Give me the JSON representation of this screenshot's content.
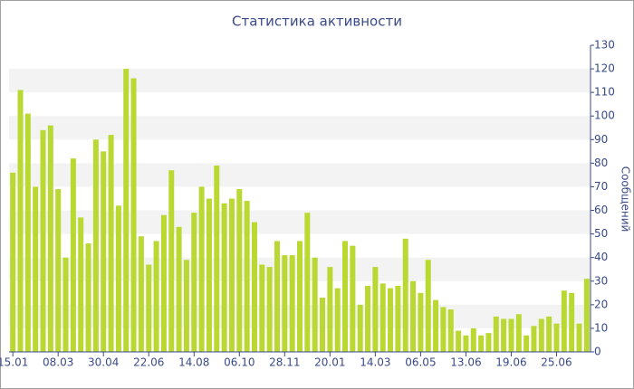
{
  "chart_data": {
    "type": "bar",
    "title": "Статистика активности",
    "y_label": "Сообщений",
    "categories": [
      "15.01",
      null,
      null,
      null,
      null,
      null,
      "08.03",
      null,
      null,
      null,
      null,
      null,
      "30.04",
      null,
      null,
      null,
      null,
      null,
      "22.06",
      null,
      null,
      null,
      null,
      null,
      "14.08",
      null,
      null,
      null,
      null,
      null,
      "06.10",
      null,
      null,
      null,
      null,
      null,
      "28.11",
      null,
      null,
      null,
      null,
      null,
      "20.01",
      null,
      null,
      null,
      null,
      null,
      "14.03",
      null,
      null,
      null,
      null,
      null,
      "06.05",
      null,
      null,
      null,
      null,
      null,
      "13.06",
      null,
      null,
      null,
      null,
      null,
      "19.06",
      null,
      null,
      null,
      null,
      null,
      "25.06",
      null,
      null,
      null,
      null
    ],
    "values": [
      76,
      111,
      101,
      70,
      94,
      96,
      69,
      40,
      82,
      57,
      46,
      90,
      85,
      92,
      62,
      120,
      116,
      49,
      37,
      47,
      58,
      77,
      53,
      39,
      59,
      70,
      65,
      79,
      63,
      65,
      69,
      64,
      55,
      37,
      36,
      47,
      41,
      41,
      47,
      59,
      40,
      23,
      36,
      27,
      47,
      45,
      20,
      28,
      36,
      29,
      27,
      28,
      48,
      30,
      25,
      39,
      22,
      19,
      18,
      9,
      7,
      10,
      7,
      8,
      15,
      14,
      14,
      16,
      7,
      11,
      14,
      15,
      12,
      26,
      25,
      12,
      31
    ],
    "color": "#b9d832",
    "ylim": [
      0,
      130
    ],
    "yticks": [
      0,
      10,
      20,
      30,
      40,
      50,
      60,
      70,
      80,
      90,
      100,
      110,
      120,
      130
    ],
    "grid": "bands",
    "y_axis_side": "right"
  }
}
